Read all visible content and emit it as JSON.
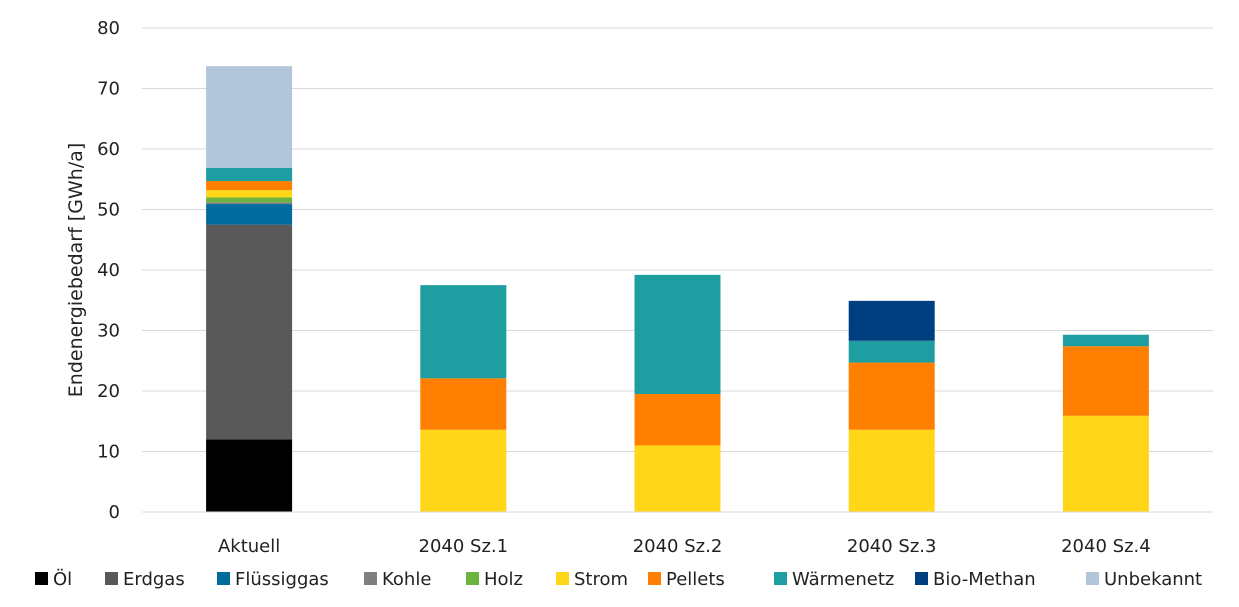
{
  "chart_data": {
    "type": "bar",
    "stacked": true,
    "categories": [
      "Aktuell",
      "2040 Sz.1",
      "2040 Sz.2",
      "2040 Sz.3",
      "2040 Sz.4"
    ],
    "ylabel": "Endenergiebedarf [GWh/a]",
    "ylim": [
      0,
      80
    ],
    "yticks": [
      0,
      10,
      20,
      30,
      40,
      50,
      60,
      70,
      80
    ],
    "grid": true,
    "legend_position": "bottom",
    "series": [
      {
        "name": "Öl",
        "color": "#000000",
        "values": [
          12.0,
          0,
          0,
          0,
          0
        ]
      },
      {
        "name": "Erdgas",
        "color": "#595959",
        "values": [
          35.5,
          0,
          0,
          0,
          0
        ]
      },
      {
        "name": "Flüssiggas",
        "color": "#006C9E",
        "values": [
          3.4,
          0,
          0,
          0,
          0
        ]
      },
      {
        "name": "Kohle",
        "color": "#7F7F7F",
        "values": [
          0.3,
          0,
          0,
          0,
          0
        ]
      },
      {
        "name": "Holz",
        "color": "#6CB33F",
        "values": [
          0.8,
          0,
          0,
          0,
          0
        ]
      },
      {
        "name": "Strom",
        "color": "#FFD618",
        "values": [
          1.2,
          13.6,
          11.0,
          13.6,
          15.9
        ]
      },
      {
        "name": "Pellets",
        "color": "#FF8000",
        "values": [
          1.5,
          8.5,
          8.5,
          11.1,
          11.5
        ]
      },
      {
        "name": "Wärmenetz",
        "color": "#1F9EA1",
        "values": [
          2.2,
          15.4,
          19.7,
          3.6,
          1.9
        ]
      },
      {
        "name": "Bio-Methan",
        "color": "#003F7F",
        "values": [
          0,
          0,
          0,
          6.6,
          0
        ]
      },
      {
        "name": "Unbekannt",
        "color": "#B3C6D9",
        "values": [
          16.8,
          0,
          0,
          0,
          0
        ]
      }
    ]
  }
}
